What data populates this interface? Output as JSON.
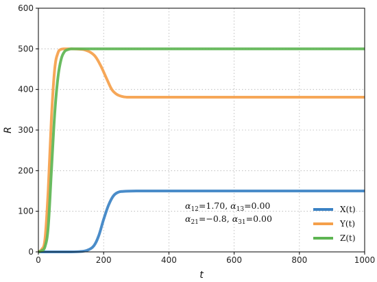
{
  "chart_data": {
    "type": "line",
    "xlabel": "t",
    "ylabel": "R",
    "xlim": [
      0,
      1000
    ],
    "ylim": [
      0,
      600
    ],
    "xticks": [
      0,
      200,
      400,
      600,
      800,
      1000
    ],
    "yticks": [
      0,
      100,
      200,
      300,
      400,
      500,
      600
    ],
    "grid": true,
    "legend_position": "lower-right",
    "annotation": {
      "line1": {
        "a": {
          "base": "α",
          "sub": "12",
          "eq": "=1.70"
        },
        "b": {
          "base": "α",
          "sub": "13",
          "eq": "=0.00"
        }
      },
      "line2": {
        "a": {
          "base": "α",
          "sub": "21",
          "eq": "=−0.8"
        },
        "b": {
          "base": "α",
          "sub": "31",
          "eq": "=0.00"
        }
      }
    },
    "series": [
      {
        "name": "X(t)",
        "color": "#3b82c4",
        "x": [
          0,
          100,
          130,
          150,
          170,
          185,
          200,
          215,
          230,
          245,
          260,
          300,
          400,
          600,
          800,
          1000
        ],
        "values": [
          0,
          0,
          1,
          4,
          15,
          40,
          80,
          115,
          138,
          147,
          149,
          150,
          150,
          150,
          150,
          150
        ]
      },
      {
        "name": "Y(t)",
        "color": "#f5a04a",
        "x": [
          0,
          10,
          20,
          30,
          40,
          50,
          60,
          70,
          80,
          100,
          140,
          170,
          190,
          210,
          225,
          240,
          255,
          270,
          300,
          400,
          600,
          800,
          1000
        ],
        "values": [
          0,
          6,
          30,
          150,
          330,
          450,
          490,
          499,
          500,
          500,
          498,
          485,
          460,
          425,
          400,
          388,
          383,
          381,
          381,
          381,
          381,
          381,
          381
        ]
      },
      {
        "name": "Z(t)",
        "color": "#5db552",
        "x": [
          0,
          10,
          20,
          30,
          40,
          50,
          60,
          70,
          80,
          90,
          100,
          120,
          150,
          200,
          400,
          600,
          800,
          1000
        ],
        "values": [
          0,
          3,
          12,
          60,
          200,
          340,
          430,
          475,
          493,
          498,
          500,
          500,
          500,
          500,
          500,
          500,
          500,
          500
        ]
      }
    ]
  }
}
